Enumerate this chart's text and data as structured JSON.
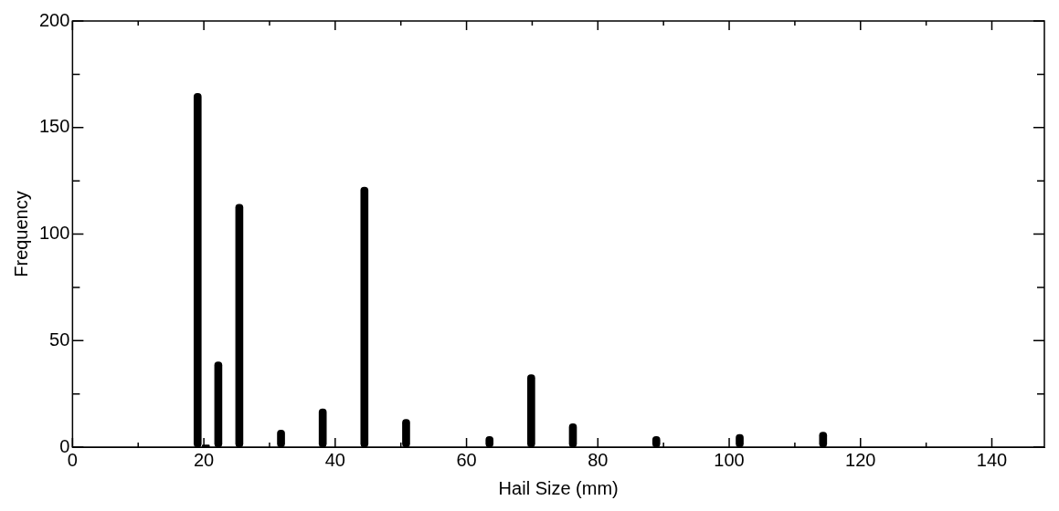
{
  "chart_data": {
    "type": "bar",
    "xlabel": "Hail Size (mm)",
    "ylabel": "Frequency",
    "x": [
      19.05,
      20.3,
      22.2,
      25.4,
      31.75,
      38.1,
      44.45,
      50.8,
      63.5,
      69.85,
      76.2,
      88.9,
      101.6,
      114.3
    ],
    "values": [
      166,
      1,
      40,
      114,
      8,
      18,
      122,
      13,
      5,
      34,
      11,
      5,
      6,
      7
    ],
    "color": "#000000",
    "xlim": [
      0,
      148
    ],
    "xticks": [
      0,
      {
        "value": 10,
        "label": null
      },
      20,
      {
        "value": 30,
        "label": null
      },
      40,
      {
        "value": 50,
        "label": null
      },
      60,
      {
        "value": 70,
        "label": null
      },
      80,
      {
        "value": 90,
        "label": null
      },
      100,
      {
        "value": 110,
        "label": null
      },
      120,
      {
        "value": 130,
        "label": null
      },
      140
    ],
    "ylim": [
      0,
      200
    ],
    "yticks": [
      0,
      {
        "value": 25,
        "label": null
      },
      50,
      {
        "value": 75,
        "label": null
      },
      100,
      {
        "value": 125,
        "label": null
      },
      150,
      {
        "value": 175,
        "label": null
      },
      200
    ],
    "grid": false,
    "legend": false
  }
}
